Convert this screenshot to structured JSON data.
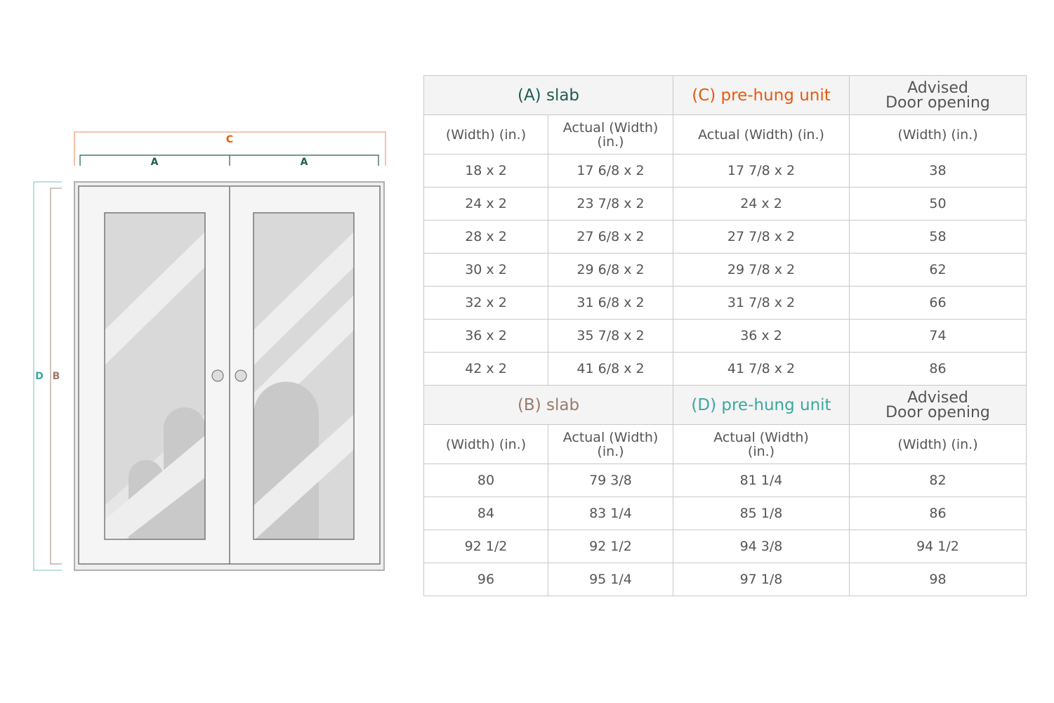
{
  "diagram": {
    "label_c": "C",
    "label_a": "A",
    "label_d": "D",
    "label_b": "B"
  },
  "colors": {
    "a": "#1f5c50",
    "c": "#e8590c",
    "b": "#9b7b6b",
    "d": "#3aa8a0"
  },
  "table1": {
    "headers": [
      "(A) slab",
      "(C) pre-hung unit",
      "Advised Door opening"
    ],
    "subheaders": [
      "(Width) (in.)",
      "Actual (Width) (in.)",
      "Actual (Width) (in.)",
      "(Width) (in.)"
    ],
    "rows": [
      [
        "18 x 2",
        "17 6/8 x 2",
        "17 7/8 x 2",
        "38"
      ],
      [
        "24 x 2",
        "23 7/8 x 2",
        "24 x 2",
        "50"
      ],
      [
        "28 x 2",
        "27 6/8 x 2",
        "27 7/8 x 2",
        "58"
      ],
      [
        "30 x 2",
        "29 6/8 x 2",
        "29 7/8 x 2",
        "62"
      ],
      [
        "32 x 2",
        "31 6/8 x 2",
        "31 7/8 x 2",
        "66"
      ],
      [
        "36 x 2",
        "35 7/8 x 2",
        "36 x 2",
        "74"
      ],
      [
        "42 x 2",
        "41 6/8 x 2",
        "41 7/8 x 2",
        "86"
      ]
    ]
  },
  "table2": {
    "headers": [
      "(B) slab",
      "(D) pre-hung unit",
      "Advised Door opening"
    ],
    "subheaders": [
      "(Width) (in.)",
      "Actual (Width) (in.)",
      "Actual (Width) (in.)",
      "(Width) (in.)"
    ],
    "rows": [
      [
        "80",
        "79 3/8",
        "81 1/4",
        "82"
      ],
      [
        "84",
        "83 1/4",
        "85 1/8",
        "86"
      ],
      [
        "92 1/2",
        "92 1/2",
        "94 3/8",
        "94 1/2"
      ],
      [
        "96",
        "95 1/4",
        "97 1/8",
        "98"
      ]
    ]
  }
}
